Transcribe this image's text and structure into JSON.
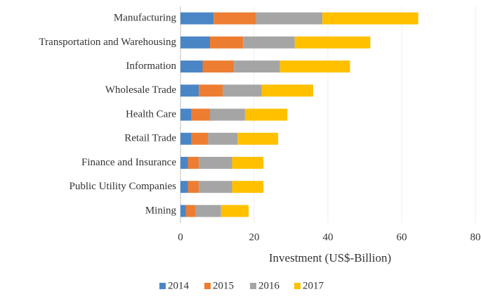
{
  "chart_data": {
    "type": "bar",
    "orientation": "horizontal",
    "stacked": true,
    "categories": [
      "Manufacturing",
      "Transportation and Warehousing",
      "Information",
      "Wholesale Trade",
      "Health Care",
      "Retail Trade",
      "Finance and Insurance",
      "Public Utility Companies",
      "Mining"
    ],
    "series": [
      {
        "name": "2014",
        "color": "#4a86c5",
        "values": [
          9,
          8,
          6,
          5,
          3,
          3,
          2,
          2,
          1.5
        ]
      },
      {
        "name": "2015",
        "color": "#ed7d31",
        "values": [
          11.5,
          9,
          8.5,
          6.5,
          5,
          4.5,
          3,
          3,
          2.5
        ]
      },
      {
        "name": "2016",
        "color": "#a5a5a5",
        "values": [
          18,
          14,
          12.5,
          10.5,
          9.5,
          8,
          9,
          9,
          7
        ]
      },
      {
        "name": "2017",
        "color": "#ffc000",
        "values": [
          26,
          20.5,
          19,
          14,
          11.5,
          11,
          8.5,
          8.5,
          7.5
        ]
      }
    ],
    "xlabel": "Investment (US$-Billion)",
    "xlim": [
      0,
      80
    ],
    "xticks": [
      0,
      20,
      40,
      60,
      80
    ],
    "grid": true,
    "legend": "bottom"
  }
}
